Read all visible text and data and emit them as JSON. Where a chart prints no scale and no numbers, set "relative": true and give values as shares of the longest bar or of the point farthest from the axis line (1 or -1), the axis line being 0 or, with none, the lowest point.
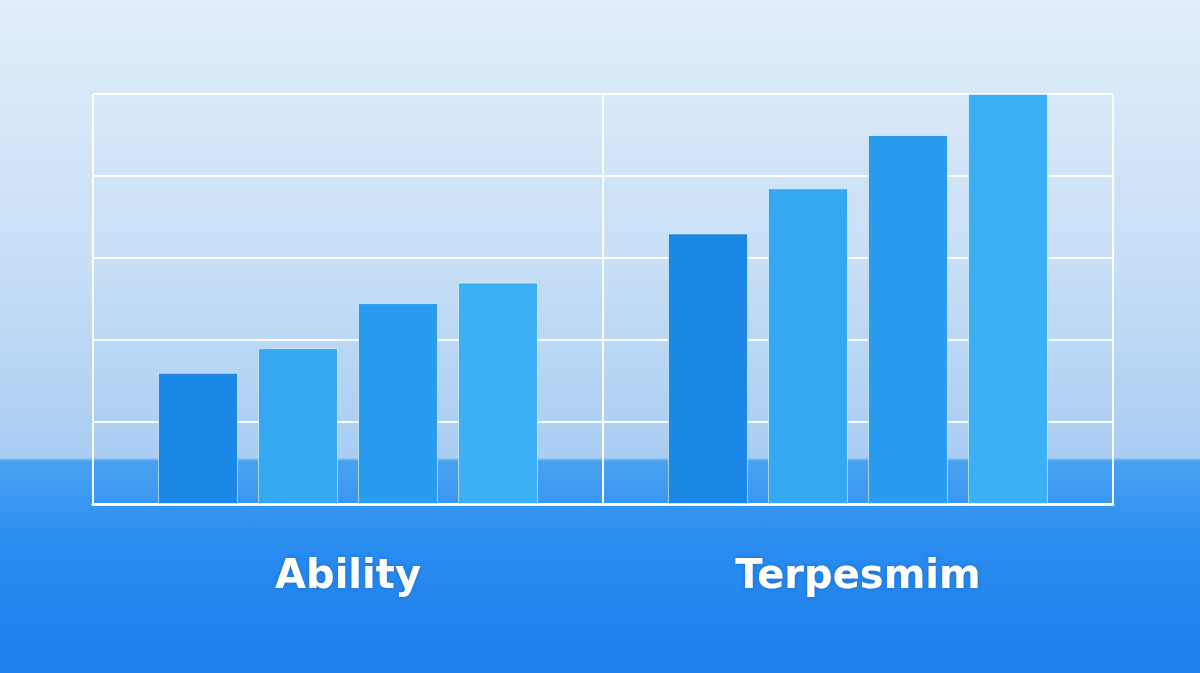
{
  "chart_data": {
    "type": "bar",
    "relative": true,
    "categories": [
      "Ability",
      "Terpesmim"
    ],
    "series": [
      {
        "color": "#1b87e6",
        "values": [
          0.32,
          0.66
        ]
      },
      {
        "color": "#35a8f2",
        "values": [
          0.38,
          0.77
        ]
      },
      {
        "color": "#2a9cef",
        "values": [
          0.49,
          0.9
        ]
      },
      {
        "color": "#3cb0f6",
        "values": [
          0.54,
          1
        ]
      }
    ],
    "grid": true
  }
}
